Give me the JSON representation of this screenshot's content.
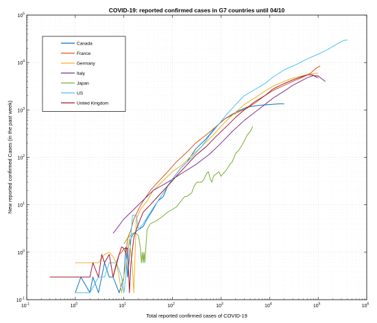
{
  "chart_data": {
    "type": "line",
    "title": "COVID-19: reported confirmed cases in  G7 countries until 04/10",
    "xlabel": "Total reported confirmed cases of COVID-19",
    "ylabel": "New reported confirmed Cases (in the past week)",
    "x_scale": "log",
    "y_scale": "log",
    "xlim": [
      0.1,
      1000000
    ],
    "ylim": [
      0.1,
      100000
    ],
    "x_tick_exponents": [
      "-1",
      "0",
      "1",
      "2",
      "3",
      "4",
      "5",
      "6"
    ],
    "y_tick_exponents": [
      "-1",
      "0",
      "1",
      "2",
      "3",
      "4",
      "5"
    ],
    "grid": true,
    "legend_position": "top-left",
    "series": [
      {
        "name": "Canada",
        "color": "#0072bd",
        "points": [
          [
            1,
            0.14
          ],
          [
            1.3,
            0.3
          ],
          [
            2,
            0.14
          ],
          [
            2.3,
            0.3
          ],
          [
            3,
            0.14
          ],
          [
            4,
            0.6
          ],
          [
            5,
            0.3
          ],
          [
            6,
            0.3
          ],
          [
            8,
            0.14
          ],
          [
            10,
            0.3
          ],
          [
            11,
            1.3
          ],
          [
            12,
            0.3
          ],
          [
            14,
            2
          ],
          [
            16,
            2.5
          ],
          [
            20,
            3
          ],
          [
            25,
            3.5
          ],
          [
            30,
            5
          ],
          [
            40,
            8
          ],
          [
            50,
            12
          ],
          [
            65,
            15
          ],
          [
            80,
            25
          ],
          [
            100,
            35
          ],
          [
            150,
            60
          ],
          [
            200,
            80
          ],
          [
            300,
            150
          ],
          [
            500,
            250
          ],
          [
            800,
            450
          ],
          [
            1200,
            650
          ],
          [
            2000,
            900
          ],
          [
            3500,
            1150
          ],
          [
            6000,
            1250
          ],
          [
            10000,
            1300
          ],
          [
            16000,
            1350
          ],
          [
            20000,
            1350
          ]
        ]
      },
      {
        "name": "France",
        "color": "#d95319",
        "points": [
          [
            6,
            0.3
          ],
          [
            7,
            0.6
          ],
          [
            8,
            0.9
          ],
          [
            9,
            1.0
          ],
          [
            10,
            1.2
          ],
          [
            11,
            0.9
          ],
          [
            12,
            2
          ],
          [
            14,
            3
          ],
          [
            16,
            5
          ],
          [
            20,
            8
          ],
          [
            25,
            12
          ],
          [
            35,
            20
          ],
          [
            50,
            30
          ],
          [
            80,
            50
          ],
          [
            120,
            80
          ],
          [
            200,
            130
          ],
          [
            300,
            200
          ],
          [
            500,
            300
          ],
          [
            800,
            450
          ],
          [
            1200,
            650
          ],
          [
            2000,
            850
          ],
          [
            3500,
            1100
          ],
          [
            5000,
            1400
          ],
          [
            8000,
            2000
          ],
          [
            12000,
            2600
          ],
          [
            20000,
            3300
          ],
          [
            30000,
            4000
          ],
          [
            50000,
            5000
          ],
          [
            70000,
            6000
          ],
          [
            90000,
            7500
          ],
          [
            110000,
            8500
          ]
        ]
      },
      {
        "name": "Germany",
        "color": "#edb120",
        "points": [
          [
            1,
            0.6
          ],
          [
            2,
            0.6
          ],
          [
            3,
            0.6
          ],
          [
            4,
            0.9
          ],
          [
            5,
            1.0
          ],
          [
            6,
            0.8
          ],
          [
            7,
            0.6
          ],
          [
            8,
            0.3
          ],
          [
            9,
            0.14
          ],
          [
            10,
            0.3
          ],
          [
            12,
            0.9
          ],
          [
            13,
            2
          ],
          [
            14,
            0.9
          ],
          [
            15,
            0.5
          ],
          [
            16,
            0.14
          ],
          [
            18,
            5
          ],
          [
            22,
            8
          ],
          [
            30,
            12
          ],
          [
            40,
            20
          ],
          [
            60,
            30
          ],
          [
            100,
            50
          ],
          [
            160,
            70
          ],
          [
            250,
            110
          ],
          [
            400,
            170
          ],
          [
            700,
            300
          ],
          [
            1200,
            550
          ],
          [
            2000,
            900
          ],
          [
            3000,
            1300
          ],
          [
            5000,
            1800
          ],
          [
            8000,
            2500
          ],
          [
            12000,
            3200
          ],
          [
            20000,
            4000
          ],
          [
            30000,
            4700
          ],
          [
            50000,
            5300
          ],
          [
            70000,
            5700
          ],
          [
            100000,
            6000
          ]
        ]
      },
      {
        "name": "Italy",
        "color": "#7e2f8e",
        "points": [
          [
            6,
            2.5
          ],
          [
            10,
            5
          ],
          [
            20,
            10
          ],
          [
            40,
            20
          ],
          [
            80,
            30
          ],
          [
            150,
            45
          ],
          [
            300,
            70
          ],
          [
            600,
            120
          ],
          [
            1000,
            200
          ],
          [
            1700,
            350
          ],
          [
            3000,
            600
          ],
          [
            5000,
            900
          ],
          [
            8000,
            1300
          ],
          [
            12000,
            1800
          ],
          [
            20000,
            2500
          ],
          [
            30000,
            3300
          ],
          [
            45000,
            4100
          ],
          [
            60000,
            4800
          ],
          [
            80000,
            5300
          ],
          [
            100000,
            5200
          ],
          [
            120000,
            4500
          ],
          [
            140000,
            4000
          ]
        ]
      },
      {
        "name": "Japan",
        "color": "#77ac30",
        "points": [
          [
            10,
            1.5
          ],
          [
            12,
            2
          ],
          [
            15,
            2.5
          ],
          [
            18,
            2.5
          ],
          [
            20,
            2.2
          ],
          [
            22,
            1.2
          ],
          [
            23,
            0.6
          ],
          [
            24,
            1.0
          ],
          [
            25,
            0.6
          ],
          [
            26,
            1.0
          ],
          [
            27,
            0.6
          ],
          [
            30,
            3
          ],
          [
            35,
            4
          ],
          [
            45,
            4.5
          ],
          [
            60,
            5.5
          ],
          [
            80,
            7
          ],
          [
            100,
            8
          ],
          [
            120,
            9
          ],
          [
            150,
            12
          ],
          [
            180,
            15
          ],
          [
            200,
            15
          ],
          [
            250,
            18
          ],
          [
            280,
            25
          ],
          [
            320,
            30
          ],
          [
            400,
            30
          ],
          [
            450,
            35
          ],
          [
            500,
            45
          ],
          [
            550,
            50
          ],
          [
            600,
            35
          ],
          [
            650,
            30
          ],
          [
            700,
            40
          ],
          [
            800,
            45
          ],
          [
            900,
            50
          ],
          [
            1000,
            40
          ],
          [
            1100,
            45
          ],
          [
            1300,
            55
          ],
          [
            1500,
            70
          ],
          [
            1700,
            80
          ],
          [
            2000,
            120
          ],
          [
            2300,
            140
          ],
          [
            2700,
            180
          ],
          [
            3000,
            220
          ],
          [
            3500,
            300
          ],
          [
            4000,
            350
          ],
          [
            4500,
            450
          ]
        ]
      },
      {
        "name": "US",
        "color": "#4dbeee",
        "points": [
          [
            1,
            0.14
          ],
          [
            2,
            0.14
          ],
          [
            3,
            0.3
          ],
          [
            4,
            0.3
          ],
          [
            5,
            0.6
          ],
          [
            7,
            0.6
          ],
          [
            9,
            0.3
          ],
          [
            10,
            0.14
          ],
          [
            11,
            0.3
          ],
          [
            12,
            1.2
          ],
          [
            14,
            2
          ],
          [
            15,
            6
          ],
          [
            18,
            6
          ],
          [
            20,
            3
          ],
          [
            25,
            4
          ],
          [
            35,
            7
          ],
          [
            50,
            12
          ],
          [
            70,
            20
          ],
          [
            100,
            35
          ],
          [
            150,
            60
          ],
          [
            250,
            100
          ],
          [
            400,
            170
          ],
          [
            600,
            300
          ],
          [
            900,
            500
          ],
          [
            1300,
            800
          ],
          [
            2000,
            1300
          ],
          [
            3000,
            2000
          ],
          [
            5000,
            2700
          ],
          [
            8000,
            3600
          ],
          [
            12000,
            5000
          ],
          [
            20000,
            7000
          ],
          [
            35000,
            9000
          ],
          [
            60000,
            12000
          ],
          [
            100000,
            15000
          ],
          [
            160000,
            19000
          ],
          [
            250000,
            25000
          ],
          [
            330000,
            29000
          ],
          [
            400000,
            30000
          ]
        ]
      },
      {
        "name": "United Kingdom",
        "color": "#a2142f",
        "points": [
          [
            0.3,
            0.3
          ],
          [
            2,
            0.3
          ],
          [
            2.3,
            0.6
          ],
          [
            3,
            0.3
          ],
          [
            3.5,
            0.9
          ],
          [
            4,
            0.6
          ],
          [
            5,
            0.9
          ],
          [
            6,
            0.3
          ],
          [
            8,
            0.9
          ],
          [
            9,
            1.3
          ],
          [
            10,
            1.2
          ],
          [
            12,
            1.2
          ],
          [
            13,
            0.14
          ],
          [
            14,
            0.6
          ],
          [
            16,
            2
          ],
          [
            18,
            3
          ],
          [
            20,
            4
          ],
          [
            25,
            7
          ],
          [
            35,
            10
          ],
          [
            50,
            15
          ],
          [
            80,
            25
          ],
          [
            120,
            40
          ],
          [
            200,
            70
          ],
          [
            300,
            110
          ],
          [
            500,
            170
          ],
          [
            800,
            280
          ],
          [
            1300,
            450
          ],
          [
            2000,
            700
          ],
          [
            3000,
            1000
          ],
          [
            5000,
            1500
          ],
          [
            8000,
            2000
          ],
          [
            12000,
            2800
          ],
          [
            20000,
            3600
          ],
          [
            30000,
            4300
          ],
          [
            45000,
            5000
          ],
          [
            60000,
            5500
          ],
          [
            75000,
            5500
          ],
          [
            90000,
            5000
          ],
          [
            100000,
            4800
          ]
        ]
      }
    ]
  }
}
